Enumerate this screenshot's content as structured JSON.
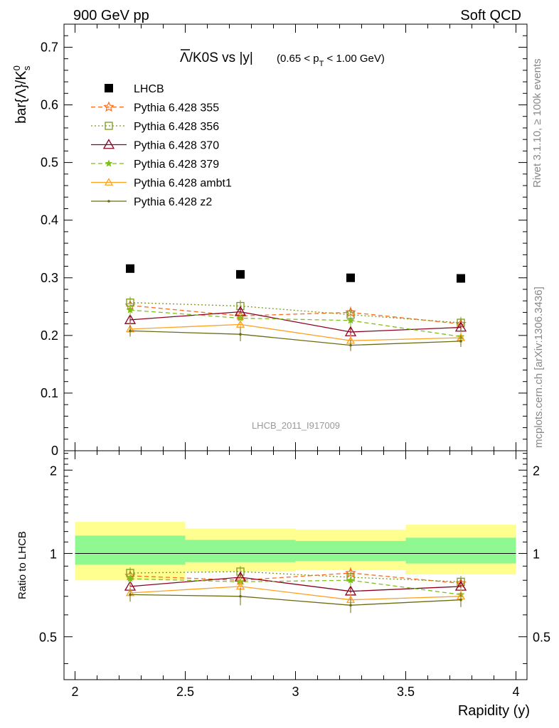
{
  "header": {
    "left": "900 GeV pp",
    "right": "Soft QCD"
  },
  "side_labels": {
    "rivet": "Rivet 3.1.10, ≥ 100k events",
    "mcplots": "mcplots.cern.ch [arXiv:1306.3436]"
  },
  "analysis_id": "LHCB_2011_I917009",
  "title": {
    "main": "Λ̄/K0S vs |y|",
    "cut": "(0.65 < p_T < 1.00 GeV)"
  },
  "main_ylabel": "bar{Λ}/K⁰s",
  "ratio_ylabel": "Ratio to LHCB",
  "xlabel": "Rapidity (y)",
  "colors": {
    "lhcb": "#000000",
    "p355": "#ff6a1a",
    "p356": "#7a9a1a",
    "p370": "#8b0020",
    "p379": "#7fbf1a",
    "ambt1": "#ffa020",
    "z2": "#6b6b10",
    "band_inner": "#90f890",
    "band_outer": "#ffff90"
  },
  "chart_data": [
    {
      "type": "scatter",
      "panel": "main",
      "x": [
        2.25,
        2.75,
        3.25,
        3.75
      ],
      "xlim": [
        1.95,
        4.05
      ],
      "ylim": [
        0,
        0.74
      ],
      "yticks": [
        0,
        0.1,
        0.2,
        0.3,
        0.4,
        0.5,
        0.6,
        0.7
      ],
      "ytick_labels": [
        "0",
        "0.1",
        "0.2",
        "0.3",
        "0.4",
        "0.5",
        "0.6",
        "0.7"
      ],
      "legend_position": "top-left",
      "series": [
        {
          "name": "LHCB",
          "key": "lhcb",
          "values": [
            0.316,
            0.306,
            0.3,
            0.299
          ],
          "err": [
            0,
            0,
            0,
            0
          ],
          "style": "marker"
        },
        {
          "name": "Pythia 6.428 355",
          "key": "p355",
          "values": [
            0.252,
            0.234,
            0.24,
            0.22
          ],
          "err": [
            0.012,
            0.01,
            0.01,
            0.012
          ],
          "style": "dashed",
          "marker": "star"
        },
        {
          "name": "Pythia 6.428 356",
          "key": "p356",
          "values": [
            0.257,
            0.251,
            0.236,
            0.222
          ],
          "err": [
            0.01,
            0.01,
            0.01,
            0.01
          ],
          "style": "dotted",
          "marker": "square"
        },
        {
          "name": "Pythia 6.428 370",
          "key": "p370",
          "values": [
            0.227,
            0.241,
            0.206,
            0.214
          ],
          "err": [
            0.01,
            0.01,
            0.01,
            0.01
          ],
          "style": "solid",
          "marker": "triangle"
        },
        {
          "name": "Pythia 6.428 379",
          "key": "p379",
          "values": [
            0.244,
            0.23,
            0.226,
            0.198
          ],
          "err": [
            0.01,
            0.01,
            0.01,
            0.01
          ],
          "style": "dashed",
          "marker": "star-small"
        },
        {
          "name": "Pythia 6.428 ambt1",
          "key": "ambt1",
          "values": [
            0.211,
            0.219,
            0.191,
            0.196
          ],
          "err": [
            0.01,
            0.012,
            0.01,
            0.01
          ],
          "style": "solid",
          "marker": "triangle-small"
        },
        {
          "name": "Pythia 6.428 z2",
          "key": "z2",
          "values": [
            0.208,
            0.202,
            0.183,
            0.19
          ],
          "err": [
            0.01,
            0.012,
            0.01,
            0.01
          ],
          "style": "solid",
          "marker": "dot"
        }
      ]
    },
    {
      "type": "scatter",
      "panel": "ratio",
      "x": [
        2.25,
        2.75,
        3.25,
        3.75
      ],
      "xlim": [
        1.95,
        4.05
      ],
      "ylim": [
        0.35,
        2.35
      ],
      "xticks": [
        2,
        2.5,
        3,
        3.5,
        4
      ],
      "xtick_labels": [
        "2",
        "2.5",
        "3",
        "3.5",
        "4"
      ],
      "yticks": [
        0.5,
        1,
        2
      ],
      "ytick_labels": [
        "0.5",
        "1",
        "2"
      ],
      "bins": [
        [
          2.0,
          2.5
        ],
        [
          2.5,
          3.0
        ],
        [
          3.0,
          3.5
        ],
        [
          3.5,
          4.0
        ]
      ],
      "band_inner": [
        [
          0.91,
          1.16
        ],
        [
          0.93,
          1.12
        ],
        [
          0.94,
          1.11
        ],
        [
          0.92,
          1.14
        ]
      ],
      "band_outer": [
        [
          0.8,
          1.3
        ],
        [
          0.86,
          1.23
        ],
        [
          0.87,
          1.22
        ],
        [
          0.84,
          1.27
        ]
      ],
      "series": [
        {
          "key": "p355",
          "values": [
            0.83,
            0.8,
            0.85,
            0.78
          ],
          "err": [
            0.04,
            0.04,
            0.04,
            0.04
          ],
          "style": "dashed",
          "marker": "star"
        },
        {
          "key": "p356",
          "values": [
            0.85,
            0.86,
            0.82,
            0.79
          ],
          "err": [
            0.04,
            0.04,
            0.04,
            0.04
          ],
          "style": "dotted",
          "marker": "square"
        },
        {
          "key": "p370",
          "values": [
            0.76,
            0.82,
            0.73,
            0.76
          ],
          "err": [
            0.04,
            0.04,
            0.04,
            0.04
          ],
          "style": "solid",
          "marker": "triangle"
        },
        {
          "key": "p379",
          "values": [
            0.81,
            0.79,
            0.8,
            0.71
          ],
          "err": [
            0.04,
            0.04,
            0.04,
            0.04
          ],
          "style": "dashed",
          "marker": "star-small"
        },
        {
          "key": "ambt1",
          "values": [
            0.72,
            0.76,
            0.68,
            0.7
          ],
          "err": [
            0.04,
            0.04,
            0.04,
            0.04
          ],
          "style": "solid",
          "marker": "triangle-small"
        },
        {
          "key": "z2",
          "values": [
            0.71,
            0.7,
            0.65,
            0.68
          ],
          "err": [
            0.04,
            0.05,
            0.04,
            0.04
          ],
          "style": "solid",
          "marker": "dot"
        }
      ]
    }
  ]
}
